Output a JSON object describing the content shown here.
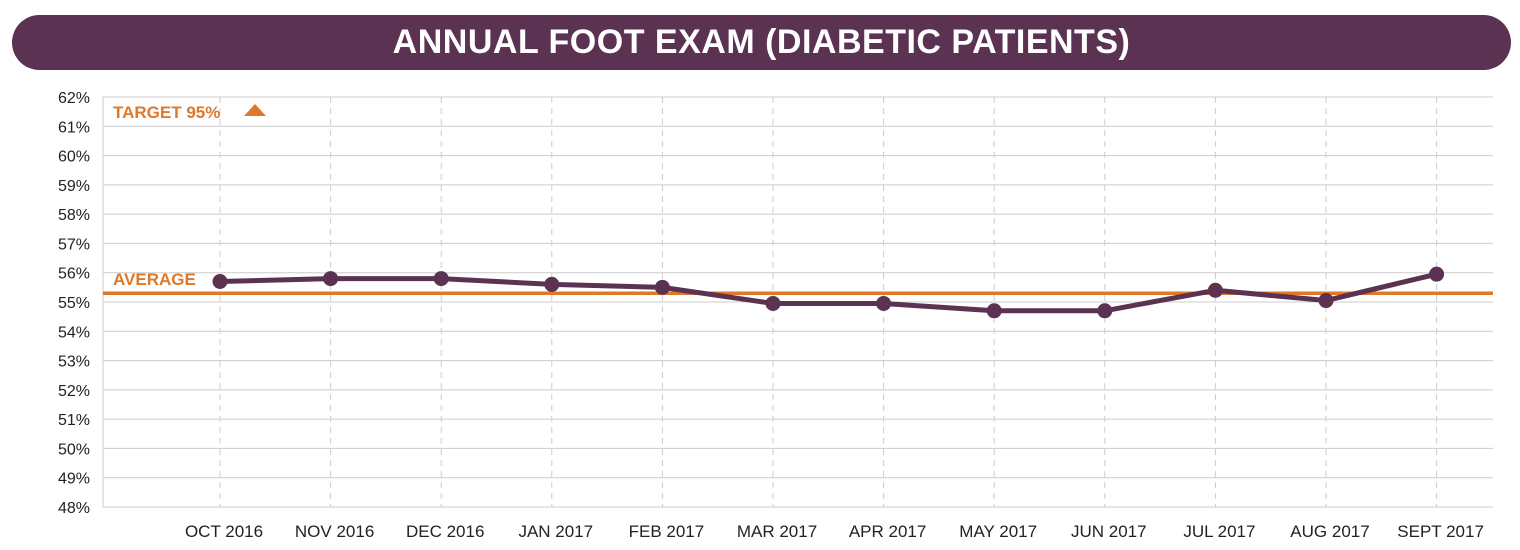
{
  "colors": {
    "title_bg": "#5b3252",
    "series": "#5b3252",
    "reference": "#e0782a",
    "grid": "#cccccc"
  },
  "chart_data": {
    "type": "line",
    "title": "ANNUAL FOOT EXAM (DIABETIC PATIENTS)",
    "categories": [
      "OCT 2016",
      "NOV 2016",
      "DEC 2016",
      "JAN 2017",
      "FEB 2017",
      "MAR 2017",
      "APR 2017",
      "MAY 2017",
      "JUN 2017",
      "JUL 2017",
      "AUG 2017",
      "SEPT 2017"
    ],
    "series": [
      {
        "values": [
          55.7,
          55.8,
          55.8,
          55.6,
          55.5,
          54.95,
          54.95,
          54.7,
          54.7,
          55.4,
          55.05,
          55.95
        ]
      }
    ],
    "yticks": [
      "48%",
      "49%",
      "50%",
      "51%",
      "52%",
      "53%",
      "54%",
      "55%",
      "56%",
      "57%",
      "58%",
      "59%",
      "60%",
      "61%",
      "62%"
    ],
    "ylim": [
      48,
      62
    ],
    "grid": true,
    "reference_lines": [
      {
        "label": "AVERAGE",
        "value": 55.3
      }
    ],
    "annotations": [
      {
        "label": "TARGET 95%",
        "marker": "up-triangle"
      }
    ]
  }
}
